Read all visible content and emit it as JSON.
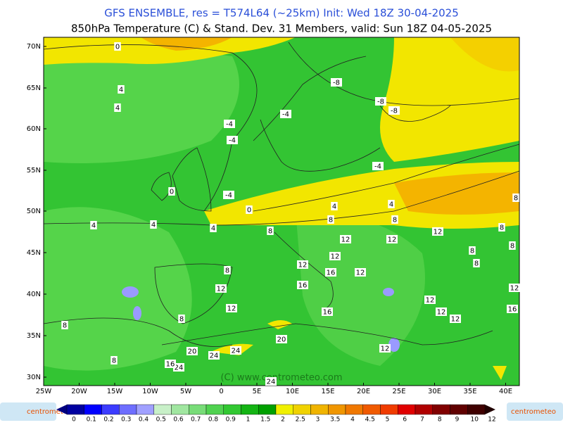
{
  "header": {
    "line1": "GFS ENSEMBLE, res = T574L64 (~25km)   Init: Wed 18Z 30-04-2025",
    "line2": "850hPa Temperature (C) & Stand. Dev.   31 Members, valid: Sun 18Z 04-05-2025"
  },
  "map": {
    "lat_labels": [
      "70N",
      "65N",
      "60N",
      "55N",
      "50N",
      "45N",
      "40N",
      "35N",
      "30N"
    ],
    "lon_labels": [
      "25W",
      "20W",
      "15W",
      "10W",
      "5W",
      "0",
      "5E",
      "10E",
      "15E",
      "20E",
      "25E",
      "30E",
      "35E",
      "40E"
    ],
    "contour_labels": [
      "0",
      "4",
      "4",
      "-8",
      "-8",
      "-8",
      "-4",
      "-4",
      "-4",
      "-4",
      "-4",
      "0",
      "0",
      "4",
      "4",
      "4",
      "4",
      "4",
      "8",
      "8",
      "8",
      "8",
      "8",
      "12",
      "12",
      "12",
      "12",
      "12",
      "16",
      "16",
      "12",
      "12",
      "16",
      "12",
      "12",
      "12",
      "12",
      "8",
      "8",
      "8",
      "8",
      "12",
      "16",
      "20",
      "24",
      "24",
      "20",
      "24",
      "16",
      "24",
      "12",
      "8",
      "8",
      "8"
    ],
    "watermark": "(C) www.centrometeo.com"
  },
  "colorbar": {
    "labels": [
      0,
      0.1,
      0.2,
      0.3,
      0.4,
      0.5,
      0.6,
      0.7,
      0.8,
      0.9,
      1,
      1.5,
      2,
      2.5,
      3,
      3.5,
      4,
      4.5,
      5,
      6,
      7,
      8,
      9,
      10,
      12
    ],
    "logo_left": "centrometeo",
    "logo_right": "centrometeo"
  }
}
